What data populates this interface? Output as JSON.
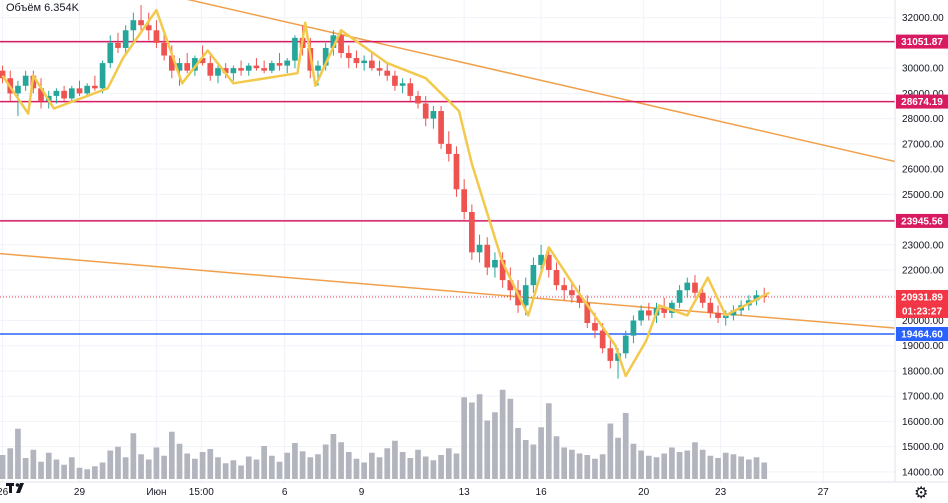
{
  "volume_label": "Объём  6.354K",
  "logo_text": "TV",
  "settings_icon": "gear-icon",
  "chart_data": {
    "type": "candlestick",
    "price_ticks": [
      "32000.00",
      "31000.00",
      "30000.00",
      "29000.00",
      "28000.00",
      "27000.00",
      "26000.00",
      "25000.00",
      "24000.00",
      "23000.00",
      "22000.00",
      "21000.00",
      "20000.00",
      "19000.00",
      "18000.00",
      "17000.00",
      "16000.00",
      "15000.00",
      "14000.00"
    ],
    "price_tick_values": [
      32000,
      31000,
      30000,
      29000,
      28000,
      27000,
      26000,
      25000,
      24000,
      23000,
      22000,
      21000,
      20000,
      19000,
      18000,
      17000,
      16000,
      15000,
      14000
    ],
    "ylim": [
      13600,
      32700
    ],
    "date_ticks": [
      {
        "label": "26",
        "day": 0
      },
      {
        "label": "29",
        "day": 3
      },
      {
        "label": "Июн",
        "day": 6
      },
      {
        "label": "15:00",
        "day": 7.75
      },
      {
        "label": "6",
        "day": 11
      },
      {
        "label": "9",
        "day": 14
      },
      {
        "label": "13",
        "day": 18
      },
      {
        "label": "16",
        "day": 21
      },
      {
        "label": "20",
        "day": 25
      },
      {
        "label": "23",
        "day": 28
      },
      {
        "label": "27",
        "day": 32
      }
    ],
    "xlim": [
      -0.1,
      34.8
    ],
    "horizontal_levels": [
      {
        "value": 31051.87,
        "label": "31051.87",
        "color": "#d81b60"
      },
      {
        "value": 28674.19,
        "label": "28674.19",
        "color": "#d81b60"
      },
      {
        "value": 23945.56,
        "label": "23945.56",
        "color": "#d81b60"
      },
      {
        "value": 19464.6,
        "label": "19464.60",
        "color": "#2962ff"
      }
    ],
    "current_price": {
      "value": 20931.89,
      "label": "20931.89",
      "countdown": "01:23:27",
      "color": "#f23645"
    },
    "trend_lines": [
      {
        "day1": 5.6,
        "price1": 33100,
        "day2": 34.8,
        "price2": 26300,
        "color": "#f0a04b"
      },
      {
        "day1": -0.1,
        "price1": 22650,
        "day2": 34.8,
        "price2": 19700,
        "color": "#f0a04b"
      }
    ],
    "zigzag": {
      "color": "#f2c94c",
      "points": [
        [
          0,
          29700
        ],
        [
          1,
          28200
        ],
        [
          1.2,
          29700
        ],
        [
          2,
          28400
        ],
        [
          4.1,
          29200
        ],
        [
          4.7,
          30400
        ],
        [
          6,
          32300
        ],
        [
          7,
          29400
        ],
        [
          8,
          30700
        ],
        [
          9,
          29400
        ],
        [
          11.5,
          29800
        ],
        [
          11.8,
          31800
        ],
        [
          12.2,
          29300
        ],
        [
          13.2,
          31500
        ],
        [
          15,
          30200
        ],
        [
          16.5,
          29600
        ],
        [
          17.8,
          28300
        ],
        [
          18.3,
          26200
        ],
        [
          19.5,
          22300
        ],
        [
          20.5,
          20200
        ],
        [
          21.3,
          22900
        ],
        [
          22.4,
          21200
        ],
        [
          23.9,
          19000
        ],
        [
          24.3,
          17800
        ],
        [
          25.1,
          19200
        ],
        [
          25.6,
          20600
        ],
        [
          26.7,
          20200
        ],
        [
          27.5,
          21700
        ],
        [
          28.2,
          20200
        ],
        [
          29.9,
          21100
        ]
      ]
    },
    "candles": [
      [
        0.0,
        29900,
        30100,
        29400,
        29600
      ],
      [
        0.3,
        29600,
        29900,
        28700,
        29000
      ],
      [
        0.6,
        29000,
        29500,
        28100,
        29300
      ],
      [
        0.9,
        29300,
        29900,
        29100,
        29700
      ],
      [
        1.2,
        29700,
        29900,
        29000,
        29200
      ],
      [
        1.5,
        29200,
        29600,
        28400,
        28700
      ],
      [
        1.8,
        28700,
        29100,
        28400,
        28900
      ],
      [
        2.1,
        28900,
        29200,
        28600,
        29100
      ],
      [
        2.4,
        29100,
        29300,
        28700,
        28800
      ],
      [
        2.7,
        28800,
        29300,
        28700,
        29200
      ],
      [
        3.0,
        29200,
        29500,
        28900,
        29000
      ],
      [
        3.3,
        29000,
        29400,
        28900,
        29300
      ],
      [
        3.6,
        29300,
        29700,
        29100,
        29200
      ],
      [
        3.9,
        29200,
        30300,
        29000,
        30200
      ],
      [
        4.2,
        30200,
        31300,
        30000,
        31000
      ],
      [
        4.5,
        31000,
        31400,
        30600,
        30800
      ],
      [
        4.8,
        30800,
        31700,
        30600,
        31500
      ],
      [
        5.1,
        31500,
        32200,
        31000,
        31900
      ],
      [
        5.4,
        31900,
        32500,
        31400,
        31700
      ],
      [
        5.7,
        31700,
        32200,
        31100,
        31500
      ],
      [
        6.0,
        31500,
        31900,
        30800,
        31000
      ],
      [
        6.3,
        31000,
        31500,
        30300,
        30500
      ],
      [
        6.6,
        30500,
        30900,
        29600,
        29900
      ],
      [
        6.9,
        29900,
        30400,
        29300,
        30200
      ],
      [
        7.2,
        30200,
        30600,
        29800,
        29900
      ],
      [
        7.5,
        29900,
        30500,
        29700,
        30400
      ],
      [
        7.8,
        30400,
        30900,
        30100,
        30200
      ],
      [
        8.1,
        30200,
        30500,
        29500,
        29700
      ],
      [
        8.4,
        29700,
        30100,
        29400,
        30000
      ],
      [
        8.7,
        30000,
        30200,
        29600,
        29800
      ],
      [
        9.0,
        29800,
        30100,
        29500,
        30000
      ],
      [
        9.3,
        30000,
        30300,
        29700,
        29900
      ],
      [
        9.6,
        29900,
        30200,
        29700,
        30100
      ],
      [
        9.9,
        30100,
        30400,
        29900,
        30000
      ],
      [
        10.2,
        30000,
        30300,
        29800,
        29900
      ],
      [
        10.5,
        29900,
        30300,
        29800,
        30200
      ],
      [
        10.8,
        30200,
        30600,
        29900,
        30100
      ],
      [
        11.1,
        30100,
        30400,
        29800,
        30300
      ],
      [
        11.4,
        30300,
        31300,
        30000,
        31200
      ],
      [
        11.7,
        31200,
        31700,
        30500,
        30800
      ],
      [
        12.0,
        30800,
        31200,
        29600,
        29900
      ],
      [
        12.3,
        29900,
        30300,
        29300,
        30100
      ],
      [
        12.6,
        30100,
        31000,
        29900,
        30800
      ],
      [
        12.9,
        30800,
        31500,
        30500,
        31300
      ],
      [
        13.2,
        31300,
        31500,
        30400,
        30600
      ],
      [
        13.5,
        30600,
        30900,
        30000,
        30400
      ],
      [
        13.8,
        30400,
        30700,
        30000,
        30200
      ],
      [
        14.1,
        30200,
        30500,
        29900,
        30300
      ],
      [
        14.4,
        30300,
        30600,
        29900,
        30000
      ],
      [
        14.7,
        30000,
        30300,
        29700,
        29900
      ],
      [
        15.0,
        29900,
        30200,
        29500,
        29700
      ],
      [
        15.3,
        29700,
        29900,
        29100,
        29300
      ],
      [
        15.6,
        29300,
        29600,
        29000,
        29400
      ],
      [
        15.9,
        29400,
        29600,
        28700,
        28900
      ],
      [
        16.2,
        28900,
        29100,
        28400,
        28600
      ],
      [
        16.5,
        28600,
        28900,
        27700,
        28000
      ],
      [
        16.8,
        28000,
        28500,
        27600,
        28300
      ],
      [
        17.1,
        28300,
        28500,
        26800,
        27000
      ],
      [
        17.4,
        27000,
        27500,
        26300,
        26600
      ],
      [
        17.7,
        26600,
        26900,
        24900,
        25200
      ],
      [
        18.0,
        25200,
        25600,
        24000,
        24300
      ],
      [
        18.3,
        24300,
        24600,
        22400,
        22700
      ],
      [
        18.6,
        22700,
        23400,
        22300,
        23000
      ],
      [
        18.9,
        23000,
        23300,
        21800,
        22100
      ],
      [
        19.2,
        22100,
        22700,
        21700,
        22400
      ],
      [
        19.5,
        22400,
        22700,
        21300,
        21600
      ],
      [
        19.8,
        21600,
        22100,
        20800,
        21200
      ],
      [
        20.1,
        21200,
        21600,
        20300,
        20600
      ],
      [
        20.4,
        20600,
        21700,
        20200,
        21400
      ],
      [
        20.7,
        21400,
        22500,
        21100,
        22200
      ],
      [
        21.0,
        22200,
        23000,
        21900,
        22600
      ],
      [
        21.3,
        22600,
        22900,
        21700,
        22000
      ],
      [
        21.6,
        22000,
        22300,
        21200,
        21400
      ],
      [
        21.9,
        21400,
        21700,
        20800,
        21200
      ],
      [
        22.2,
        21200,
        21500,
        20700,
        21000
      ],
      [
        22.5,
        21000,
        21400,
        20500,
        20700
      ],
      [
        22.8,
        20700,
        21000,
        19700,
        19900
      ],
      [
        23.1,
        19900,
        20300,
        19300,
        19600
      ],
      [
        23.4,
        19600,
        19900,
        18700,
        18900
      ],
      [
        23.7,
        18900,
        19300,
        18100,
        18400
      ],
      [
        24.0,
        18400,
        18900,
        17700,
        18700
      ],
      [
        24.3,
        18700,
        19600,
        18500,
        19400
      ],
      [
        24.6,
        19400,
        20200,
        19100,
        20000
      ],
      [
        24.9,
        20000,
        20600,
        19800,
        20400
      ],
      [
        25.2,
        20400,
        20700,
        20000,
        20200
      ],
      [
        25.5,
        20200,
        20700,
        19900,
        20500
      ],
      [
        25.8,
        20500,
        20900,
        20100,
        20300
      ],
      [
        26.1,
        20300,
        20800,
        20100,
        20700
      ],
      [
        26.4,
        20700,
        21400,
        20500,
        21200
      ],
      [
        26.7,
        21200,
        21700,
        20900,
        21500
      ],
      [
        27.0,
        21500,
        21800,
        20900,
        21100
      ],
      [
        27.3,
        21100,
        21400,
        20500,
        20700
      ],
      [
        27.6,
        20700,
        20900,
        20100,
        20300
      ],
      [
        27.9,
        20300,
        20600,
        19900,
        20100
      ],
      [
        28.2,
        20100,
        20400,
        19800,
        20200
      ],
      [
        28.5,
        20200,
        20600,
        20000,
        20400
      ],
      [
        28.8,
        20400,
        20800,
        20200,
        20600
      ],
      [
        29.1,
        20600,
        21000,
        20400,
        20800
      ],
      [
        29.4,
        20800,
        21200,
        20600,
        21000
      ],
      [
        29.7,
        21000,
        21300,
        20700,
        20932
      ]
    ],
    "volume_max": 18000,
    "volumes": [
      [
        0.0,
        3200
      ],
      [
        0.3,
        4100
      ],
      [
        0.6,
        6700
      ],
      [
        0.9,
        2800
      ],
      [
        1.2,
        3900
      ],
      [
        1.5,
        2300
      ],
      [
        1.8,
        3500
      ],
      [
        2.1,
        2600
      ],
      [
        2.4,
        1900
      ],
      [
        2.7,
        2900
      ],
      [
        3.0,
        1500
      ],
      [
        3.3,
        1300
      ],
      [
        3.6,
        1700
      ],
      [
        3.9,
        2200
      ],
      [
        4.2,
        3800
      ],
      [
        4.5,
        4300
      ],
      [
        4.8,
        2900
      ],
      [
        5.1,
        6100
      ],
      [
        5.4,
        3300
      ],
      [
        5.7,
        2600
      ],
      [
        6.0,
        4200
      ],
      [
        6.3,
        3100
      ],
      [
        6.6,
        6300
      ],
      [
        6.9,
        4700
      ],
      [
        7.2,
        3400
      ],
      [
        7.5,
        2700
      ],
      [
        7.8,
        3600
      ],
      [
        8.1,
        4000
      ],
      [
        8.4,
        2900
      ],
      [
        8.7,
        2100
      ],
      [
        9.0,
        2500
      ],
      [
        9.3,
        1800
      ],
      [
        9.6,
        3000
      ],
      [
        9.9,
        2600
      ],
      [
        10.2,
        4400
      ],
      [
        10.5,
        3100
      ],
      [
        10.8,
        2300
      ],
      [
        11.1,
        3500
      ],
      [
        11.4,
        4800
      ],
      [
        11.7,
        3700
      ],
      [
        12.0,
        2900
      ],
      [
        12.3,
        3300
      ],
      [
        12.6,
        4600
      ],
      [
        12.9,
        6000
      ],
      [
        13.2,
        4900
      ],
      [
        13.5,
        3600
      ],
      [
        13.8,
        2700
      ],
      [
        14.1,
        2200
      ],
      [
        14.4,
        3500
      ],
      [
        14.7,
        2900
      ],
      [
        15.0,
        4100
      ],
      [
        15.3,
        5100
      ],
      [
        15.6,
        3600
      ],
      [
        15.9,
        2800
      ],
      [
        16.2,
        3900
      ],
      [
        16.5,
        3000
      ],
      [
        16.8,
        2500
      ],
      [
        17.1,
        3200
      ],
      [
        17.4,
        4100
      ],
      [
        17.7,
        3400
      ],
      [
        18.0,
        10900
      ],
      [
        18.3,
        10200
      ],
      [
        18.6,
        11300
      ],
      [
        18.9,
        7800
      ],
      [
        19.2,
        8900
      ],
      [
        19.5,
        11900
      ],
      [
        19.8,
        10700
      ],
      [
        20.1,
        6800
      ],
      [
        20.4,
        5200
      ],
      [
        20.7,
        4600
      ],
      [
        21.0,
        6900
      ],
      [
        21.3,
        10100
      ],
      [
        21.6,
        5700
      ],
      [
        21.9,
        4200
      ],
      [
        22.2,
        3900
      ],
      [
        22.5,
        3400
      ],
      [
        22.8,
        3200
      ],
      [
        23.1,
        2700
      ],
      [
        23.4,
        3300
      ],
      [
        23.7,
        7400
      ],
      [
        24.0,
        5500
      ],
      [
        24.3,
        8800
      ],
      [
        24.6,
        4700
      ],
      [
        24.9,
        3800
      ],
      [
        25.2,
        3100
      ],
      [
        25.5,
        2900
      ],
      [
        25.8,
        3400
      ],
      [
        26.1,
        4200
      ],
      [
        26.4,
        3600
      ],
      [
        26.7,
        3800
      ],
      [
        27.0,
        4900
      ],
      [
        27.3,
        3900
      ],
      [
        27.6,
        3100
      ],
      [
        27.9,
        2800
      ],
      [
        28.2,
        3500
      ],
      [
        28.5,
        3300
      ],
      [
        28.8,
        3000
      ],
      [
        29.1,
        2600
      ],
      [
        29.4,
        2900
      ],
      [
        29.7,
        2200
      ]
    ]
  }
}
